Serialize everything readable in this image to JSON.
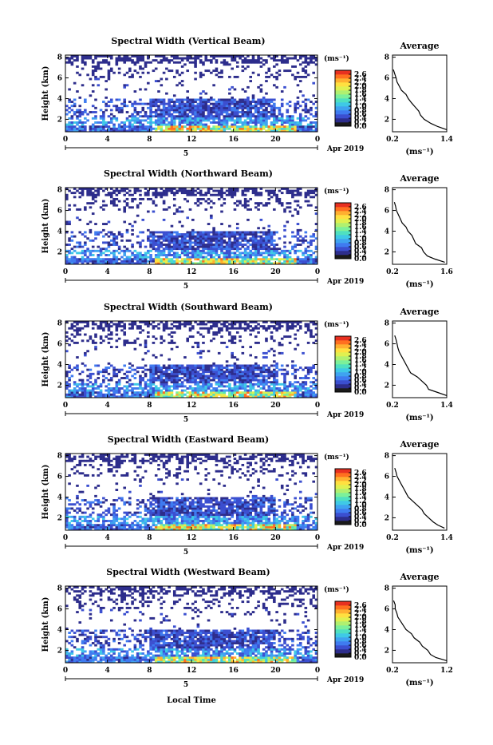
{
  "page": {
    "footer_xlabel": "Local Time"
  },
  "colorbar": {
    "unit": "(ms⁻¹)",
    "tick_labels": [
      "2.6",
      "2.4",
      "2.2",
      "2.0",
      "1.8",
      "1.6",
      "1.4",
      "1.2",
      "1.0",
      "0.8",
      "0.6",
      "0.4",
      "0.2",
      "0.0"
    ],
    "colors": [
      "#1a1a1a",
      "#2d2d8c",
      "#3b4fd0",
      "#3f7bf0",
      "#3fa3f0",
      "#3fc9e6",
      "#4fe0c0",
      "#7cf09a",
      "#b0f070",
      "#e0f050",
      "#ffe040",
      "#ffb030",
      "#ff7020",
      "#e83020"
    ]
  },
  "chart_data": [
    {
      "type": "heatmap",
      "title": "Spectral Width (Vertical Beam)",
      "ylabel": "Height (km)",
      "yticks": [
        "2",
        "4",
        "6",
        "8"
      ],
      "ylim": [
        0.8,
        8.2
      ],
      "xticks": [
        "0",
        "4",
        "8",
        "12",
        "16",
        "20",
        "0"
      ],
      "xlim": [
        0,
        24
      ],
      "day_label": "5",
      "date_label": "Apr 2019",
      "profile": {
        "title": "Average",
        "xlabel": "(ms⁻¹)",
        "xticks": [
          "0.2",
          "1.4"
        ],
        "xlim": [
          0.2,
          1.4
        ],
        "yticks": [
          "2",
          "4",
          "6",
          "8"
        ],
        "heights": [
          1.0,
          1.3,
          1.6,
          2.0,
          2.4,
          2.8,
          3.2,
          3.6,
          4.0,
          4.4,
          4.8,
          5.2,
          5.6,
          6.0,
          6.4,
          6.8
        ],
        "values": [
          1.4,
          1.2,
          1.05,
          0.9,
          0.82,
          0.78,
          0.7,
          0.62,
          0.55,
          0.5,
          0.4,
          0.35,
          0.3,
          0.28,
          0.25,
          0.22
        ]
      }
    },
    {
      "type": "heatmap",
      "title": "Spectral Width (Northward Beam)",
      "ylabel": "Height (km)",
      "yticks": [
        "2",
        "4",
        "6",
        "8"
      ],
      "ylim": [
        0.8,
        8.2
      ],
      "xticks": [
        "0",
        "4",
        "8",
        "12",
        "16",
        "20",
        "0"
      ],
      "xlim": [
        0,
        24
      ],
      "day_label": "5",
      "date_label": "Apr 2019",
      "profile": {
        "title": "Average",
        "xlabel": "(ms⁻¹)",
        "xticks": [
          "0.2",
          "1.6"
        ],
        "xlim": [
          0.2,
          1.6
        ],
        "yticks": [
          "2",
          "4",
          "6",
          "8"
        ],
        "heights": [
          1.0,
          1.3,
          1.6,
          2.0,
          2.4,
          2.8,
          3.2,
          3.6,
          4.0,
          4.4,
          4.8,
          5.2,
          5.6,
          6.0,
          6.4,
          6.8
        ],
        "values": [
          1.55,
          1.3,
          1.1,
          1.0,
          0.95,
          0.8,
          0.75,
          0.7,
          0.6,
          0.55,
          0.45,
          0.4,
          0.35,
          0.3,
          0.28,
          0.25
        ]
      }
    },
    {
      "type": "heatmap",
      "title": "Spectral Width (Southward Beam)",
      "ylabel": "Height (km)",
      "yticks": [
        "2",
        "4",
        "6",
        "8"
      ],
      "ylim": [
        0.8,
        8.2
      ],
      "xticks": [
        "0",
        "4",
        "8",
        "12",
        "16",
        "20",
        "0"
      ],
      "xlim": [
        0,
        24
      ],
      "day_label": "5",
      "date_label": "Apr 2019",
      "profile": {
        "title": "Average",
        "xlabel": "(ms⁻¹)",
        "xticks": [
          "0.2",
          "1.4"
        ],
        "xlim": [
          0.2,
          1.4
        ],
        "yticks": [
          "2",
          "4",
          "6",
          "8"
        ],
        "heights": [
          1.0,
          1.3,
          1.6,
          2.0,
          2.4,
          2.8,
          3.2,
          3.6,
          4.0,
          4.4,
          4.8,
          5.2,
          5.6,
          6.0,
          6.4,
          6.8
        ],
        "values": [
          1.4,
          1.2,
          1.0,
          0.95,
          0.85,
          0.75,
          0.6,
          0.55,
          0.5,
          0.45,
          0.4,
          0.35,
          0.32,
          0.3,
          0.28,
          0.25
        ]
      }
    },
    {
      "type": "heatmap",
      "title": "Spectral Width (Eastward Beam)",
      "ylabel": "Height (km)",
      "yticks": [
        "2",
        "4",
        "6",
        "8"
      ],
      "ylim": [
        0.8,
        8.2
      ],
      "xticks": [
        "0",
        "4",
        "8",
        "12",
        "16",
        "20",
        "0"
      ],
      "xlim": [
        0,
        24
      ],
      "day_label": "5",
      "date_label": "Apr 2019",
      "profile": {
        "title": "Average",
        "xlabel": "(ms⁻¹)",
        "xticks": [
          "0.2",
          "1.4"
        ],
        "xlim": [
          0.2,
          1.4
        ],
        "yticks": [
          "2",
          "4",
          "6",
          "8"
        ],
        "heights": [
          1.0,
          1.3,
          1.6,
          2.0,
          2.4,
          2.8,
          3.2,
          3.6,
          4.0,
          4.4,
          4.8,
          5.2,
          5.6,
          6.0,
          6.4,
          6.8
        ],
        "values": [
          1.35,
          1.2,
          1.1,
          1.0,
          0.9,
          0.85,
          0.75,
          0.65,
          0.55,
          0.5,
          0.45,
          0.4,
          0.35,
          0.3,
          0.28,
          0.25
        ]
      }
    },
    {
      "type": "heatmap",
      "title": "Spectral Width (Westward Beam)",
      "ylabel": "Height (km)",
      "yticks": [
        "2",
        "4",
        "6",
        "8"
      ],
      "ylim": [
        0.8,
        8.2
      ],
      "xticks": [
        "0",
        "4",
        "8",
        "12",
        "16",
        "20",
        "0"
      ],
      "xlim": [
        0,
        24
      ],
      "day_label": "5",
      "date_label": "Apr 2019",
      "profile": {
        "title": "Average",
        "xlabel": "(ms⁻¹)",
        "xticks": [
          "0.2",
          "1.2"
        ],
        "xlim": [
          0.2,
          1.2
        ],
        "yticks": [
          "2",
          "4",
          "6",
          "8"
        ],
        "heights": [
          1.0,
          1.3,
          1.6,
          2.0,
          2.4,
          2.8,
          3.2,
          3.6,
          4.0,
          4.4,
          4.8,
          5.2,
          5.6,
          6.0,
          6.4,
          6.8
        ],
        "values": [
          1.2,
          1.0,
          0.9,
          0.85,
          0.75,
          0.7,
          0.6,
          0.55,
          0.45,
          0.4,
          0.35,
          0.3,
          0.28,
          0.25,
          0.25,
          0.22
        ]
      }
    }
  ]
}
